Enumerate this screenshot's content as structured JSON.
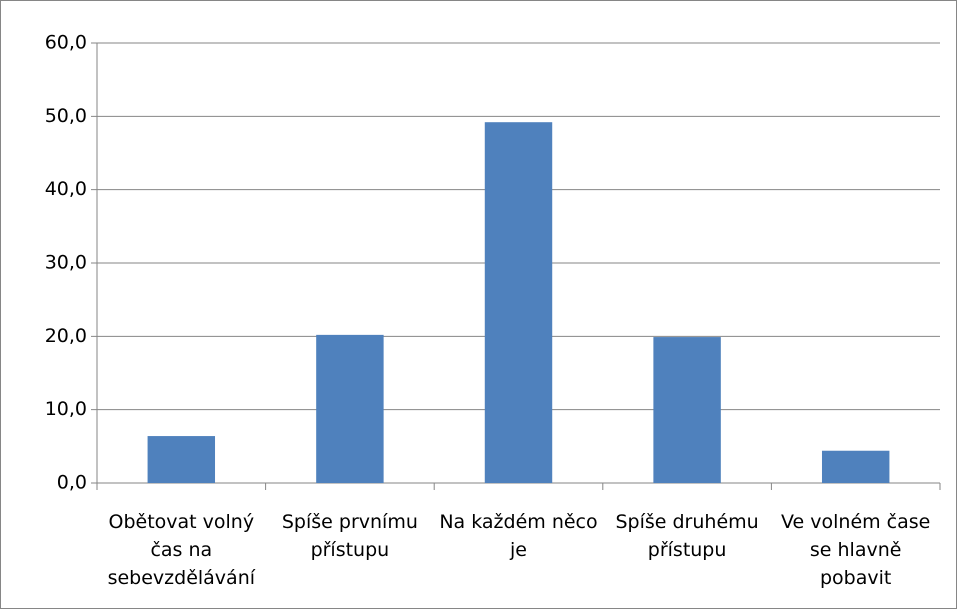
{
  "chart_data": {
    "type": "bar",
    "categories": [
      "Obětovat volný čas na sebevzdělávání",
      "Spíše prvnímu přístupu",
      "Na každém něco je",
      "Spíše druhému přístupu",
      "Ve volném čase se hlavně pobavit"
    ],
    "values": [
      6.4,
      20.2,
      49.2,
      19.9,
      4.4
    ],
    "color": "#4f81bd",
    "ylim": [
      0,
      60
    ],
    "yticks": [
      {
        "value": 0,
        "label": "0,0"
      },
      {
        "value": 10,
        "label": "10,0"
      },
      {
        "value": 20,
        "label": "20,0"
      },
      {
        "value": 30,
        "label": "30,0"
      },
      {
        "value": 40,
        "label": "40,0"
      },
      {
        "value": 50,
        "label": "50,0"
      },
      {
        "value": 60,
        "label": "60,0"
      }
    ],
    "grid": true
  }
}
